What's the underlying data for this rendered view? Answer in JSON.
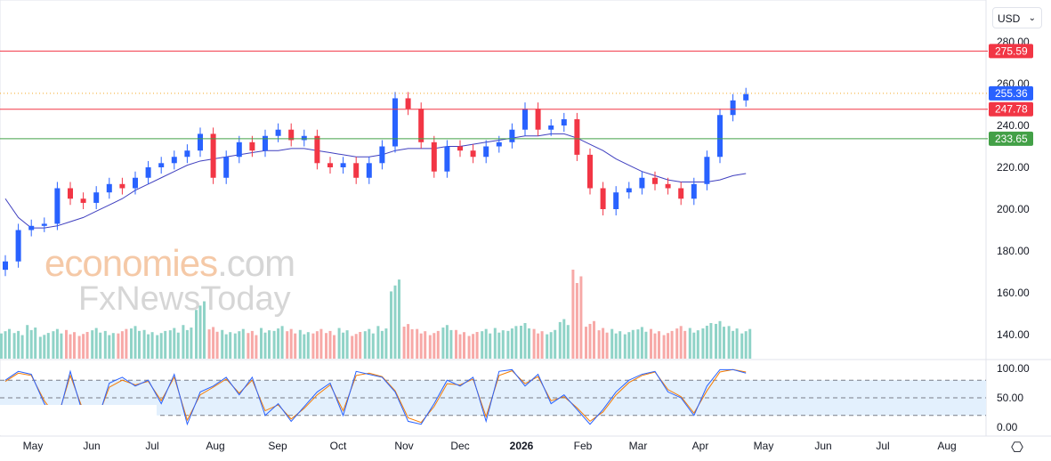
{
  "currency_selector": {
    "value": "USD",
    "icon": "chevron-down-icon"
  },
  "settings_icon": "gear-icon",
  "watermark": {
    "line1": "economies",
    "line1_suffix": ".com",
    "line2": "FxNewsToday"
  },
  "colors": {
    "up": "#2962ff",
    "down": "#f23645",
    "ma": "#3f3fbf",
    "stoch_k": "#2962ff",
    "stoch_d": "#f57c00",
    "support": "#43a047",
    "resistance": "#f23645",
    "current": "#2962ff"
  },
  "chart_data": {
    "type": "candlestick",
    "x_start": "2025-04-21",
    "interval": "1W",
    "x_tick_labels": [
      "May",
      "Jun",
      "Jul",
      "Aug",
      "Sep",
      "Oct",
      "Nov",
      "Dec",
      "2026",
      "Feb",
      "Mar",
      "Apr",
      "May",
      "Jun",
      "Jul",
      "Aug"
    ],
    "y_tick_labels": [
      "280.00",
      "260.00",
      "240.00",
      "220.00",
      "200.00",
      "180.00",
      "160.00",
      "140.00"
    ],
    "ylim": [
      133,
      284
    ],
    "closes": [
      175,
      190,
      192,
      193,
      210,
      205,
      203,
      208,
      212,
      210,
      215,
      220,
      222,
      225,
      228,
      236,
      215,
      225,
      232,
      228,
      235,
      238,
      233,
      235,
      222,
      220,
      222,
      215,
      222,
      230,
      253,
      248,
      232,
      218,
      230,
      228,
      225,
      230,
      232,
      238,
      248,
      238,
      240,
      243,
      226,
      210,
      200,
      208,
      210,
      215,
      212,
      210,
      205,
      212,
      225,
      245,
      252,
      255
    ],
    "moving_average": [
      205,
      196,
      191,
      191,
      192,
      194,
      196,
      199,
      202,
      205,
      209,
      212,
      215,
      218,
      221,
      223,
      224,
      225,
      226,
      227,
      228,
      228,
      229,
      229,
      228,
      227,
      226,
      225,
      225,
      226,
      228,
      229,
      229,
      229,
      230,
      230,
      231,
      232,
      233,
      234,
      235,
      235,
      236,
      236,
      234,
      231,
      228,
      224,
      221,
      218,
      216,
      214,
      213,
      213,
      213,
      214,
      216,
      217
    ],
    "volume": [
      30,
      28,
      34,
      26,
      30,
      29,
      27,
      31,
      28,
      30,
      33,
      29,
      28,
      31,
      34,
      58,
      32,
      29,
      30,
      28,
      31,
      33,
      30,
      29,
      30,
      28,
      31,
      27,
      30,
      33,
      80,
      35,
      30,
      28,
      34,
      29,
      27,
      30,
      31,
      33,
      36,
      30,
      29,
      40,
      90,
      38,
      31,
      30,
      29,
      32,
      30,
      28,
      33,
      31,
      36,
      38,
      33,
      30
    ],
    "stochastic_k": [
      80,
      95,
      90,
      40,
      10,
      95,
      20,
      5,
      75,
      85,
      70,
      80,
      40,
      90,
      5,
      60,
      70,
      85,
      55,
      85,
      20,
      40,
      10,
      35,
      60,
      75,
      20,
      95,
      90,
      85,
      60,
      10,
      5,
      40,
      80,
      70,
      85,
      10,
      95,
      98,
      70,
      90,
      40,
      55,
      30,
      5,
      30,
      60,
      80,
      90,
      95,
      60,
      50,
      20,
      70,
      98,
      98,
      92
    ],
    "stochastic_d": [
      78,
      92,
      88,
      45,
      15,
      88,
      28,
      10,
      68,
      80,
      72,
      78,
      45,
      85,
      12,
      55,
      68,
      82,
      58,
      80,
      28,
      38,
      14,
      32,
      55,
      72,
      28,
      88,
      92,
      86,
      62,
      16,
      8,
      35,
      74,
      72,
      82,
      18,
      88,
      96,
      74,
      86,
      45,
      52,
      33,
      10,
      26,
      55,
      76,
      88,
      94,
      64,
      52,
      24,
      62,
      94,
      98,
      94
    ],
    "stochastic_levels": [
      80,
      50,
      20
    ],
    "stochastic_axis": [
      "100.00",
      "50.00",
      "0.00"
    ],
    "horizontal_lines": [
      {
        "value": 275.59,
        "label": "275.59",
        "kind": "resistance"
      },
      {
        "value": 255.36,
        "label": "255.36",
        "kind": "current"
      },
      {
        "value": 247.78,
        "label": "247.78",
        "kind": "resistance"
      },
      {
        "value": 233.65,
        "label": "233.65",
        "kind": "support"
      }
    ]
  }
}
